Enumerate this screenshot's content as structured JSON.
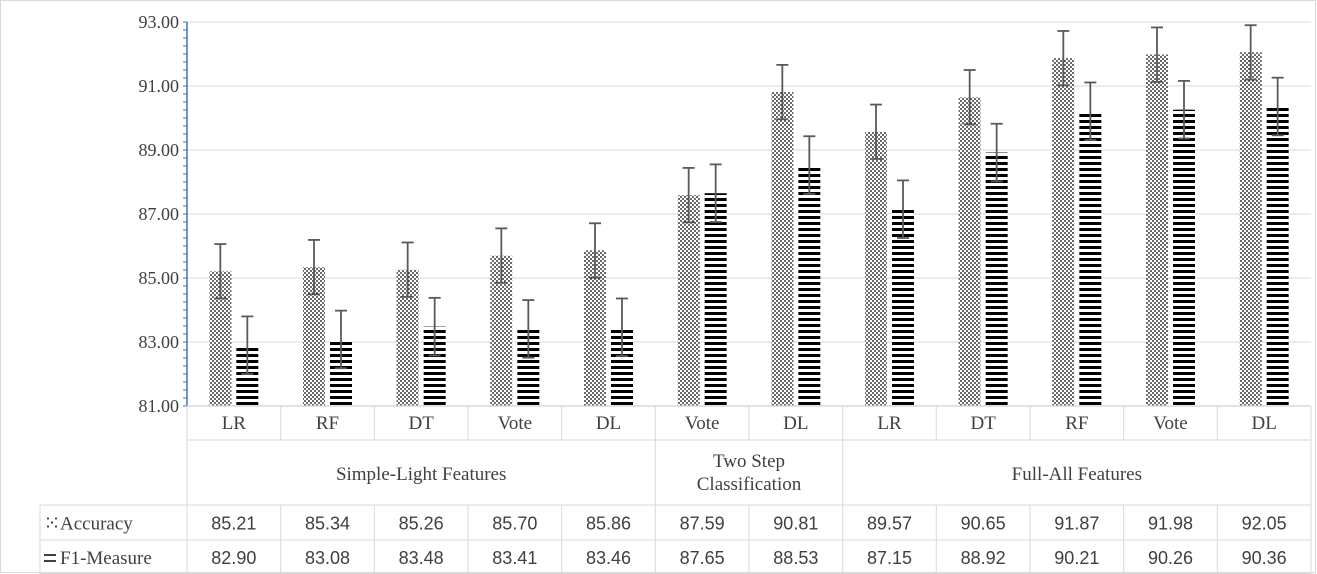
{
  "chart_data": {
    "type": "bar",
    "ylim": [
      81,
      93
    ],
    "yticks": [
      "81.00",
      "83.00",
      "85.00",
      "87.00",
      "89.00",
      "91.00",
      "93.00"
    ],
    "grid": true,
    "legend": "table-left",
    "categories": [
      "LR",
      "RF",
      "DT",
      "Vote",
      "DL",
      "Vote",
      "DL",
      "LR",
      "DT",
      "RF",
      "Vote",
      "DL"
    ],
    "groups": [
      {
        "label": "Simple-Light Features",
        "span": 5
      },
      {
        "label": "Two Step Classification",
        "span": 2
      },
      {
        "label": "Full-All Features",
        "span": 5
      }
    ],
    "series": [
      {
        "name": "Accuracy",
        "pattern": "dots",
        "values": [
          85.21,
          85.34,
          85.26,
          85.7,
          85.86,
          87.59,
          90.81,
          89.57,
          90.65,
          91.87,
          91.98,
          92.05
        ],
        "display": [
          "85.21",
          "85.34",
          "85.26",
          "85.70",
          "85.86",
          "87.59",
          "90.81",
          "89.57",
          "90.65",
          "91.87",
          "91.98",
          "92.05"
        ],
        "error": 0.85
      },
      {
        "name": "F1-Measure",
        "pattern": "horizontal-lines",
        "values": [
          82.9,
          83.08,
          83.48,
          83.41,
          83.46,
          87.65,
          88.53,
          87.15,
          88.92,
          90.21,
          90.26,
          90.36
        ],
        "display": [
          "82.90",
          "83.08",
          "83.48",
          "83.41",
          "83.46",
          "87.65",
          "88.53",
          "87.15",
          "88.92",
          "90.21",
          "90.26",
          "90.36"
        ],
        "error": 0.9
      }
    ],
    "colors": {
      "text": "#404040",
      "grid": "#d9d9d9",
      "axis": "#4472c4",
      "bar": "#000000",
      "error": "#595959"
    }
  }
}
